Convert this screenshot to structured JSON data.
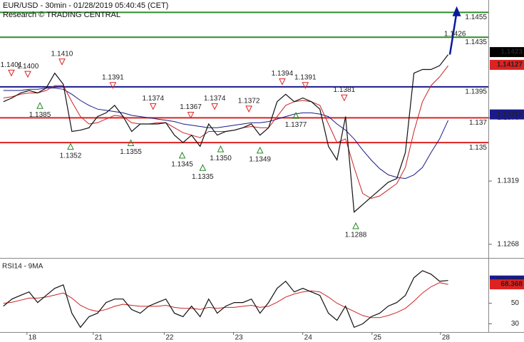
{
  "header": {
    "title": "EUR/USD - 30min - 01/28/2019 05:40:45 (CET)",
    "subtitle": "Research © TRADING CENTRAL"
  },
  "chart_data": [
    {
      "type": "line",
      "xlim": [
        -0.4,
        56.7
      ],
      "xticks": [
        {
          "value": 2.75,
          "label": "18"
        },
        {
          "value": 10.5,
          "label": "21"
        },
        {
          "value": 18.8,
          "label": "22"
        },
        {
          "value": 26.9,
          "label": "23"
        },
        {
          "value": 35,
          "label": "24"
        },
        {
          "value": 43.1,
          "label": "25"
        },
        {
          "value": 51.1,
          "label": "28"
        }
      ],
      "ylim": [
        1.1257,
        1.1465
      ],
      "yticks": [
        {
          "value": 1.137,
          "label": "1.1370"
        },
        1.1319,
        1.1268
      ],
      "x": [
        0,
        1,
        2,
        3,
        4,
        5,
        6,
        7,
        8,
        9,
        10,
        11,
        12,
        13,
        14,
        15,
        16,
        17,
        18,
        19,
        20,
        21,
        22,
        23,
        24,
        25,
        26,
        27,
        28,
        29,
        30,
        31,
        32,
        33,
        34,
        35,
        36,
        37,
        38,
        39,
        40,
        41,
        42,
        43,
        44,
        45,
        46,
        47,
        48,
        49,
        50,
        51,
        52
      ],
      "series": [
        {
          "color": "#1a1a8c",
          "values": [
            1.1392,
            1.1392,
            1.1392,
            1.1393,
            1.1393,
            1.1394,
            1.1394,
            1.1393,
            1.1389,
            1.1384,
            1.138,
            1.1377,
            1.1376,
            1.1375,
            1.1374,
            1.1372,
            1.1371,
            1.137,
            1.1369,
            1.1368,
            1.1367,
            1.1365,
            1.1364,
            1.1363,
            1.1362,
            1.1362,
            1.1363,
            1.1364,
            1.1365,
            1.1366,
            1.1366,
            1.1367,
            1.1369,
            1.1371,
            1.1373,
            1.1374,
            1.1374,
            1.1373,
            1.1371,
            1.1365,
            1.136,
            1.1353,
            1.1344,
            1.1336,
            1.1329,
            1.1324,
            1.1322,
            1.1321,
            1.1324,
            1.133,
            1.1342,
            1.1353,
            1.1368
          ]
        },
        {
          "color": "#cc2222",
          "values": [
            1.1386,
            1.1387,
            1.1389,
            1.139,
            1.139,
            1.1392,
            1.1396,
            1.1396,
            1.1383,
            1.1371,
            1.1365,
            1.1366,
            1.1369,
            1.1372,
            1.1371,
            1.1366,
            1.1365,
            1.1365,
            1.1366,
            1.1366,
            1.1362,
            1.1358,
            1.1356,
            1.1354,
            1.1359,
            1.1359,
            1.1359,
            1.136,
            1.1362,
            1.1363,
            1.1362,
            1.1362,
            1.1371,
            1.138,
            1.1383,
            1.1384,
            1.1383,
            1.138,
            1.1365,
            1.135,
            1.1353,
            1.133,
            1.1309,
            1.1305,
            1.1307,
            1.1312,
            1.1317,
            1.133,
            1.1359,
            1.1383,
            1.1396,
            1.1403,
            1.1412
          ]
        },
        {
          "color": "#111111",
          "values": [
            1.1383,
            1.1386,
            1.139,
            1.1392,
            1.139,
            1.1394,
            1.1406,
            1.1397,
            1.1359,
            1.136,
            1.1362,
            1.1371,
            1.1374,
            1.138,
            1.1371,
            1.1359,
            1.1365,
            1.1365,
            1.1365,
            1.1366,
            1.1356,
            1.135,
            1.1356,
            1.1347,
            1.1365,
            1.1356,
            1.1359,
            1.136,
            1.1362,
            1.1365,
            1.1356,
            1.1362,
            1.1383,
            1.1389,
            1.1383,
            1.1386,
            1.1383,
            1.1377,
            1.1347,
            1.1336,
            1.1371,
            1.1294,
            1.13,
            1.1306,
            1.1312,
            1.1318,
            1.1321,
            1.1342,
            1.1406,
            1.1409,
            1.1409,
            1.1412,
            1.1421
          ]
        }
      ],
      "forecast": {
        "color": "#0a1a9c",
        "x": [
          52.2,
          53.0
        ],
        "values": [
          1.1421,
          1.146
        ]
      },
      "levels": [
        {
          "value": 1.1455,
          "color": "#2e8b2e"
        },
        {
          "value": 1.1435,
          "color": "#2e8b2e"
        },
        {
          "value": 1.1395,
          "color": "#1a1a8c"
        },
        {
          "value": 1.137,
          "color": "#dd2222"
        },
        {
          "value": 1.135,
          "color": "#dd2222"
        }
      ],
      "annotations": [
        {
          "x": 0.93,
          "value": 1.1401,
          "label": "1.1401",
          "marker": "down"
        },
        {
          "x": 2.85,
          "value": 1.14,
          "label": "1.1400",
          "marker": "down"
        },
        {
          "x": 4.27,
          "value": 1.1385,
          "label": "1.1385",
          "marker": "up"
        },
        {
          "x": 6.85,
          "value": 1.141,
          "label": "1.1410",
          "marker": "down"
        },
        {
          "x": 7.85,
          "value": 1.1352,
          "label": "1.1352",
          "marker": "up"
        },
        {
          "x": 12.8,
          "value": 1.1391,
          "label": "1.1391",
          "marker": "down"
        },
        {
          "x": 14.9,
          "value": 1.1355,
          "label": "1.1355",
          "marker": "up"
        },
        {
          "x": 17.5,
          "value": 1.1374,
          "label": "1.1374",
          "marker": "down"
        },
        {
          "x": 20.9,
          "value": 1.1345,
          "label": "1.1345",
          "marker": "up"
        },
        {
          "x": 21.9,
          "value": 1.1367,
          "label": "1.1367",
          "marker": "down"
        },
        {
          "x": 23.3,
          "value": 1.1335,
          "label": "1.1335",
          "marker": "up"
        },
        {
          "x": 24.7,
          "value": 1.1374,
          "label": "1.1374",
          "marker": "down"
        },
        {
          "x": 25.4,
          "value": 1.135,
          "label": "1.1350",
          "marker": "up"
        },
        {
          "x": 28.7,
          "value": 1.1372,
          "label": "1.1372",
          "marker": "down"
        },
        {
          "x": 30.0,
          "value": 1.1349,
          "label": "1.1349",
          "marker": "up"
        },
        {
          "x": 32.6,
          "value": 1.1394,
          "label": "1.1394",
          "marker": "down"
        },
        {
          "x": 34.2,
          "value": 1.1377,
          "label": "1.1377",
          "marker": "up"
        },
        {
          "x": 35.3,
          "value": 1.1391,
          "label": "1.1391",
          "marker": "down"
        },
        {
          "x": 39.85,
          "value": 1.1381,
          "label": "1.1381",
          "marker": "down"
        },
        {
          "x": 41.2,
          "value": 1.1288,
          "label": "1.1288",
          "marker": "up"
        },
        {
          "x": 52.8,
          "value": 1.1426,
          "label": "1.1426",
          "marker": "none"
        }
      ],
      "price_markers": [
        {
          "value": 1.1423,
          "color": "#000000"
        },
        {
          "value": 1.14127,
          "color": "#dd2222"
        },
        {
          "value": 1.13727,
          "color": "#1a1a8c"
        }
      ]
    },
    {
      "type": "line",
      "title": "RSI14 - 9MA",
      "xlim": [
        -0.4,
        56.7
      ],
      "ylim": [
        22,
        92
      ],
      "yticks": [
        50,
        30
      ],
      "x": [
        0,
        1,
        2,
        3,
        4,
        5,
        6,
        7,
        8,
        9,
        10,
        11,
        12,
        13,
        14,
        15,
        16,
        17,
        18,
        19,
        20,
        21,
        22,
        23,
        24,
        25,
        26,
        27,
        28,
        29,
        30,
        31,
        32,
        33,
        34,
        35,
        36,
        37,
        38,
        39,
        40,
        41,
        42,
        43,
        44,
        45,
        46,
        47,
        48,
        49,
        50,
        51,
        52
      ],
      "series": [
        {
          "color": "#cc2222",
          "values": [
            50,
            51,
            53,
            55,
            55,
            56,
            58,
            60,
            55,
            48,
            44,
            42,
            44,
            47,
            49,
            48,
            47,
            47,
            47,
            48,
            46,
            45,
            45,
            44,
            46,
            45,
            46,
            46,
            47,
            48,
            46,
            47,
            51,
            56,
            59,
            61,
            62,
            61,
            56,
            50,
            46,
            42,
            38,
            36,
            36,
            38,
            41,
            45,
            52,
            60,
            66,
            70,
            68.4
          ]
        },
        {
          "color": "#111111",
          "values": [
            47.2,
            54.1,
            57.6,
            61.0,
            50.7,
            57.6,
            64.5,
            67.9,
            40.3,
            26.6,
            36.9,
            40.3,
            50.7,
            54.1,
            54.1,
            43.8,
            40.3,
            47.2,
            50.7,
            54.1,
            40.3,
            36.9,
            47.2,
            36.9,
            54.1,
            40.3,
            47.2,
            50.7,
            50.7,
            54.1,
            40.3,
            50.7,
            64.5,
            71.4,
            61.0,
            64.5,
            61.0,
            57.6,
            40.3,
            33.4,
            47.2,
            26.6,
            30.0,
            36.9,
            40.3,
            47.2,
            50.7,
            57.6,
            74.8,
            81.7,
            78.3,
            71.4,
            72.1
          ]
        }
      ],
      "price_markers": [
        {
          "value": 72.1008,
          "color": "#1a1a8c"
        },
        {
          "value": 68.368,
          "color": "#dd2222"
        }
      ]
    }
  ]
}
